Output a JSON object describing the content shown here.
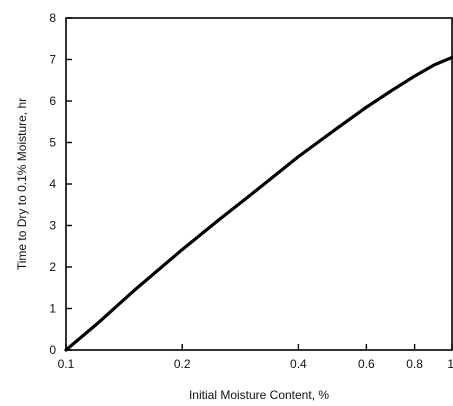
{
  "chart_data": {
    "type": "line",
    "title": "",
    "xlabel": "Initial Moisture Content, %",
    "ylabel": "Time to Dry to 0.1% Moisture, hr",
    "x_scale": "log",
    "xlim": [
      0.1,
      1.0
    ],
    "ylim": [
      0,
      8
    ],
    "x_ticks": [
      0.1,
      0.2,
      0.4,
      0.6,
      0.8,
      1.0
    ],
    "x_tick_labels": [
      "0.1",
      "0.2",
      "0.4",
      "0.6",
      "0.8",
      "1"
    ],
    "y_ticks": [
      0,
      1,
      2,
      3,
      4,
      5,
      6,
      7,
      8
    ],
    "y_tick_labels": [
      "0",
      "1",
      "2",
      "3",
      "4",
      "5",
      "6",
      "7",
      "8"
    ],
    "grid": false,
    "legend": "none",
    "series": [
      {
        "color": "#000000",
        "x": [
          0.1,
          0.12,
          0.15,
          0.2,
          0.25,
          0.3,
          0.4,
          0.5,
          0.6,
          0.7,
          0.8,
          0.9,
          1.0
        ],
        "y": [
          0.0,
          0.62,
          1.43,
          2.42,
          3.15,
          3.73,
          4.66,
          5.32,
          5.85,
          6.26,
          6.6,
          6.87,
          7.05
        ]
      }
    ]
  }
}
